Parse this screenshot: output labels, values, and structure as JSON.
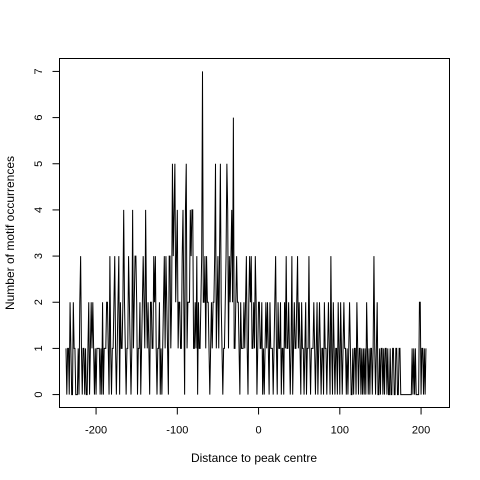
{
  "chart_data": {
    "type": "line",
    "title": "",
    "xlabel": "Distance to peak centre",
    "ylabel": "Number of motif occurrences",
    "xlim": [
      -245,
      235
    ],
    "ylim": [
      -0.28,
      7.28
    ],
    "x_ticks": [
      -200,
      -100,
      0,
      100,
      200
    ],
    "x_tick_labels": [
      "-200",
      "-100",
      "0",
      "100",
      "200"
    ],
    "y_ticks": [
      0,
      1,
      2,
      3,
      4,
      5,
      6,
      7
    ],
    "y_tick_labels": [
      "0",
      "1",
      "2",
      "3",
      "4",
      "5",
      "6",
      "7"
    ],
    "grid": false,
    "legend": "none",
    "line_color": "#000000",
    "series": [
      {
        "x_start": -237,
        "x_step": 1,
        "values": [
          1,
          0,
          1,
          1,
          0,
          2,
          1,
          0,
          0,
          2,
          1,
          1,
          0,
          0,
          0,
          1,
          0,
          2,
          3,
          1,
          0,
          1,
          1,
          0,
          1,
          0,
          0,
          1,
          2,
          0,
          1,
          2,
          1,
          2,
          1,
          0,
          1,
          0,
          1,
          1,
          1,
          1,
          0,
          1,
          0,
          2,
          0,
          1,
          1,
          1,
          2,
          2,
          1,
          0,
          3,
          1,
          0,
          1,
          1,
          2,
          3,
          1,
          0,
          1,
          2,
          3,
          0,
          2,
          1,
          1,
          2,
          4,
          2,
          1,
          0,
          1,
          1,
          3,
          2,
          1,
          0,
          1,
          4,
          1,
          2,
          3,
          3,
          2,
          0,
          1,
          1,
          2,
          0,
          1,
          2,
          3,
          2,
          1,
          4,
          2,
          1,
          2,
          1,
          0,
          2,
          2,
          1,
          1,
          3,
          2,
          3,
          1,
          0,
          1,
          1,
          2,
          0,
          1,
          0,
          1,
          2,
          3,
          1,
          3,
          2,
          1,
          0,
          3,
          3,
          1,
          2,
          5,
          3,
          4,
          5,
          2,
          3,
          4,
          1,
          2,
          2,
          1,
          1,
          3,
          4,
          2,
          0,
          4,
          5,
          1,
          2,
          2,
          2,
          4,
          3,
          4,
          4,
          1,
          1,
          2,
          1,
          3,
          0,
          2,
          1,
          1,
          2,
          3,
          7,
          2,
          2,
          3,
          1,
          3,
          2,
          2,
          1,
          0,
          1,
          2,
          1,
          2,
          2,
          3,
          5,
          1,
          2,
          3,
          1,
          3,
          5,
          2,
          1,
          0,
          1,
          1,
          2,
          3,
          5,
          4,
          1,
          3,
          2,
          3,
          4,
          2,
          6,
          1,
          1,
          2,
          3,
          2,
          2,
          1,
          0,
          2,
          1,
          1,
          1,
          2,
          1,
          2,
          3,
          1,
          0,
          2,
          3,
          2,
          3,
          1,
          1,
          2,
          1,
          3,
          2,
          0,
          1,
          2,
          2,
          1,
          1,
          2,
          0,
          1,
          0,
          1,
          2,
          1,
          2,
          1,
          0,
          2,
          1,
          1,
          1,
          0,
          1,
          2,
          3,
          1,
          0,
          2,
          1,
          1,
          2,
          0,
          1,
          1,
          0,
          2,
          1,
          3,
          1,
          1,
          2,
          1,
          0,
          1,
          3,
          0,
          1,
          2,
          1,
          1,
          2,
          3,
          1,
          2,
          1,
          0,
          2,
          1,
          1,
          0,
          1,
          2,
          0,
          1,
          1,
          3,
          1,
          0,
          1,
          1,
          1,
          2,
          1,
          0,
          1,
          2,
          0,
          1,
          2,
          1,
          0,
          1,
          1,
          0,
          2,
          1,
          1,
          0,
          1,
          2,
          1,
          0,
          3,
          1,
          0,
          2,
          1,
          0,
          1,
          1,
          0,
          2,
          1,
          0,
          2,
          1,
          0,
          1,
          2,
          1,
          1,
          0,
          1,
          0,
          1,
          2,
          1,
          0,
          0,
          1,
          0,
          1,
          1,
          0,
          2,
          1,
          0,
          1,
          1,
          0,
          1,
          0,
          1,
          0,
          1,
          0,
          2,
          1,
          0,
          1,
          0,
          1,
          1,
          0,
          1,
          3,
          1,
          0,
          1,
          2,
          0,
          0,
          1,
          0,
          1,
          1,
          0,
          1,
          0,
          1,
          1,
          0,
          1,
          0,
          0,
          1,
          0,
          0,
          1,
          1,
          0,
          0,
          1,
          1,
          0,
          0,
          1,
          1,
          0,
          0,
          0,
          0,
          0,
          0,
          0,
          0,
          0,
          0,
          0,
          0,
          0,
          0,
          1,
          0,
          1,
          0,
          1,
          0,
          0,
          0,
          0,
          2,
          2,
          0,
          1,
          1,
          0,
          1,
          0,
          1
        ]
      }
    ]
  }
}
